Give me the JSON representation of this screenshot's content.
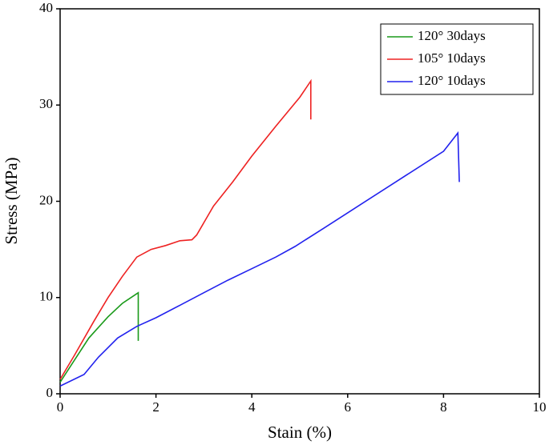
{
  "chart_data": {
    "type": "line",
    "xlabel": "Stain (%)",
    "ylabel": "Stress (MPa)",
    "xlim": [
      0,
      10
    ],
    "ylim": [
      0,
      40
    ],
    "xticks": [
      0,
      2,
      4,
      6,
      8,
      10
    ],
    "yticks": [
      0,
      10,
      20,
      30,
      40
    ],
    "legend": "upper right",
    "series": [
      {
        "name": "120° 30days",
        "color": "#1a9a1a",
        "x": [
          0,
          0.3,
          0.6,
          1.0,
          1.3,
          1.6,
          1.63,
          1.63
        ],
        "values": [
          1.2,
          3.5,
          5.8,
          8.0,
          9.4,
          10.4,
          10.5,
          5.5
        ]
      },
      {
        "name": "105° 10days",
        "color": "#ee2222",
        "x": [
          0,
          0.3,
          0.7,
          1.0,
          1.3,
          1.6,
          1.9,
          2.2,
          2.5,
          2.75,
          2.85,
          3.2,
          3.6,
          4.0,
          4.5,
          5.0,
          5.23,
          5.23
        ],
        "values": [
          1.5,
          4,
          7.5,
          10,
          12.2,
          14.2,
          15,
          15.4,
          15.9,
          16,
          16.5,
          19.5,
          22,
          24.7,
          27.8,
          30.8,
          32.5,
          28.5
        ]
      },
      {
        "name": "120° 10days",
        "color": "#2222ee",
        "x": [
          0,
          0.5,
          0.8,
          1.2,
          1.6,
          2.0,
          2.5,
          3.0,
          3.5,
          4.0,
          4.5,
          4.9,
          5.5,
          6.0,
          7.0,
          8.0,
          8.3,
          8.33
        ],
        "values": [
          0.8,
          2,
          3.8,
          5.8,
          7,
          7.9,
          9.2,
          10.5,
          11.8,
          13,
          14.2,
          15.3,
          17.2,
          18.8,
          22,
          25.2,
          27.1,
          22
        ]
      }
    ]
  }
}
